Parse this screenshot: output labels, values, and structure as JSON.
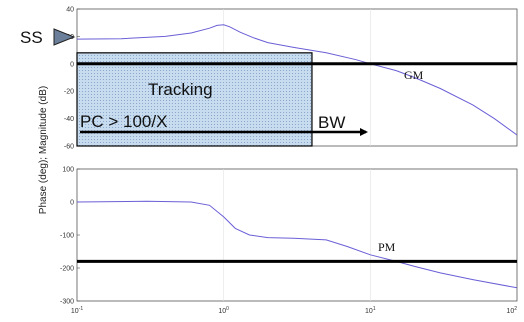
{
  "chart_data": {
    "type": "line",
    "ylabel": "Phase (deg); Magnitude (dB)",
    "x_scale": "log",
    "xlim": [
      0.1,
      100
    ],
    "x_tick_labels": [
      "10",
      "10",
      "10",
      "10"
    ],
    "x_tick_exponents": [
      "-1",
      "0",
      "1",
      "2"
    ],
    "panels": [
      {
        "name": "magnitude",
        "ylim": [
          -60,
          40
        ],
        "y_ticks": [
          40,
          20,
          0,
          -20,
          -40,
          -60
        ],
        "series": [
          {
            "x": [
              0.1,
              0.2,
              0.4,
              0.6,
              0.8,
              0.9,
              1.0,
              1.1,
              1.3,
              1.6,
              2,
              3,
              5,
              8,
              10,
              15,
              20,
              30,
              50,
              70,
              100
            ],
            "y": [
              18,
              18.3,
              20,
              22.5,
              26,
              28,
              28.5,
              27,
              23,
              19,
              15.5,
              12,
              8,
              3,
              0,
              -5,
              -10,
              -18,
              -30,
              -40,
              -52
            ]
          }
        ],
        "reference_line": {
          "y": 0
        },
        "tracking_region": {
          "x_from": 0.1,
          "x_to": 4,
          "y_from": -60,
          "y_to": 8
        }
      },
      {
        "name": "phase",
        "ylim": [
          -300,
          100
        ],
        "y_ticks": [
          100,
          0,
          -100,
          -200,
          -300
        ],
        "series": [
          {
            "x": [
              0.1,
              0.3,
              0.6,
              0.8,
              1.0,
              1.2,
              1.5,
              2,
              3,
              5,
              7,
              10,
              15,
              20,
              30,
              50,
              100
            ],
            "y": [
              0,
              2,
              0,
              -10,
              -45,
              -80,
              -100,
              -108,
              -110,
              -115,
              -135,
              -160,
              -180,
              -195,
              -215,
              -235,
              -260
            ]
          }
        ],
        "reference_line": {
          "y": -180
        }
      }
    ],
    "annotations": {
      "ss": "SS",
      "tracking": "Tracking",
      "pc": "PC > 100/X",
      "bw": "BW",
      "gm": "GM",
      "pm": "PM"
    }
  }
}
